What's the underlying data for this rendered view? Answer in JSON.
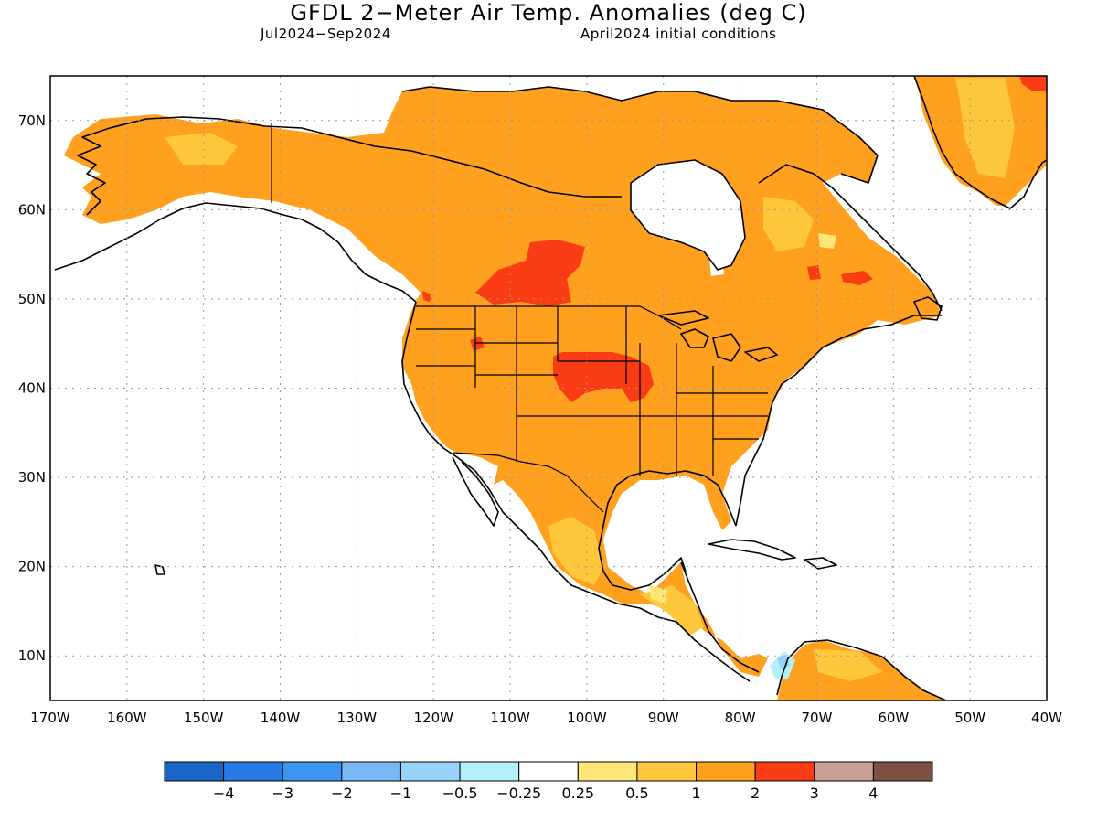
{
  "header": {
    "title": "GFDL 2−Meter Air Temp. Anomalies (deg C)",
    "period": "Jul2024−Sep2024",
    "initial_conditions": "April2024 initial conditions"
  },
  "map": {
    "region": "North America",
    "projection": "cylindrical equidistant",
    "lon_range": [
      -170,
      -40
    ],
    "lat_range": [
      5,
      75
    ],
    "lat_labels": [
      "70N",
      "60N",
      "50N",
      "40N",
      "30N",
      "20N",
      "10N"
    ],
    "lon_labels": [
      "170W",
      "160W",
      "150W",
      "140W",
      "130W",
      "120W",
      "110W",
      "100W",
      "90W",
      "80W",
      "70W",
      "60W",
      "50W",
      "40W"
    ],
    "gridlines": "dotted",
    "dominant_anomaly_bin": "1 to 2",
    "hotspots_bin": "2 to 3",
    "hotspot_regions": [
      "Saskatchewan/Manitoba",
      "Nebraska/Iowa",
      "northern Wyoming",
      "Quebec/Labrador",
      "northeast Greenland"
    ]
  },
  "colorbar": {
    "bin_colors": [
      "#1a64c8",
      "#2a7ae6",
      "#3c96f0",
      "#78b9f5",
      "#96d2fa",
      "#b4f0fa",
      "#ffffff",
      "#ffe678",
      "#ffc83c",
      "#ffa01e",
      "#fa3c14",
      "#c8a096",
      "#7d5044"
    ],
    "tick_labels": [
      "−4",
      "−3",
      "−2",
      "−1",
      "−0.5",
      "−0.25",
      "0.25",
      "0.5",
      "1",
      "2",
      "3",
      "4"
    ]
  }
}
